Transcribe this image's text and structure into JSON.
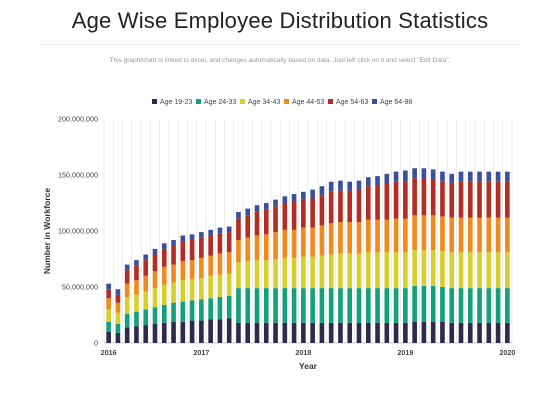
{
  "header": {
    "title": "Age Wise Employee Distribution Statistics",
    "subtitle": "This graph/chart is linked to excel, and changes automatically based on data. Just left click on it and select \"Edit Data\"."
  },
  "colors": {
    "background": "#ffffff",
    "grid": "#dcdcdc"
  },
  "chart_data": {
    "type": "bar",
    "stacked": true,
    "xlabel": "Year",
    "ylabel": "Number in Workforce",
    "ylim": [
      0,
      200000000
    ],
    "yticks": [
      0,
      50000000,
      100000000,
      150000000,
      200000000
    ],
    "ytick_labels": [
      "0",
      "50,000,000",
      "100,000,000",
      "150,000,000",
      "200,000,000"
    ],
    "x_tick_labels": [
      {
        "label": "2016",
        "index": 0
      },
      {
        "label": "2017",
        "index": 10
      },
      {
        "label": "2018",
        "index": 21
      },
      {
        "label": "2019",
        "index": 32
      },
      {
        "label": "2020",
        "index": 43
      }
    ],
    "grid": true,
    "grid_orientation": "vertical",
    "legend_position": "top",
    "series": [
      {
        "name": "Age 19-23",
        "color": "#2f2a4a",
        "values": [
          10000000,
          9000000,
          14000000,
          15000000,
          16000000,
          17000000,
          18000000,
          19000000,
          19000000,
          20000000,
          20000000,
          21000000,
          21000000,
          22000000,
          18000000,
          18000000,
          18000000,
          18000000,
          18000000,
          18000000,
          18000000,
          18000000,
          18000000,
          18000000,
          18000000,
          18000000,
          18000000,
          18000000,
          18000000,
          18000000,
          18000000,
          18000000,
          18000000,
          19000000,
          19000000,
          19000000,
          19000000,
          18000000,
          18000000,
          18000000,
          18000000,
          18000000,
          18000000,
          18000000
        ]
      },
      {
        "name": "Age 24-33",
        "color": "#13a07a",
        "values": [
          9000000,
          8000000,
          12000000,
          13000000,
          14000000,
          15000000,
          16000000,
          17000000,
          18000000,
          18000000,
          19000000,
          19000000,
          20000000,
          20000000,
          31000000,
          31000000,
          31000000,
          31000000,
          31000000,
          31000000,
          31000000,
          31000000,
          31000000,
          31000000,
          31000000,
          31000000,
          31000000,
          31000000,
          31000000,
          31000000,
          31000000,
          31000000,
          31000000,
          32000000,
          32000000,
          32000000,
          31000000,
          31000000,
          31000000,
          31000000,
          31000000,
          31000000,
          31000000,
          31000000
        ]
      },
      {
        "name": "Age 34-43",
        "color": "#d7cf2e",
        "values": [
          11000000,
          10000000,
          15000000,
          15000000,
          16000000,
          17000000,
          18000000,
          18000000,
          19000000,
          19000000,
          19000000,
          20000000,
          20000000,
          20000000,
          23000000,
          24000000,
          25000000,
          25000000,
          26000000,
          27000000,
          27000000,
          28000000,
          28000000,
          29000000,
          30000000,
          31000000,
          31000000,
          31000000,
          32000000,
          32000000,
          32000000,
          32000000,
          32000000,
          32000000,
          32000000,
          32000000,
          32000000,
          32000000,
          32000000,
          32000000,
          32000000,
          32000000,
          32000000,
          32000000
        ]
      },
      {
        "name": "Age 44-53",
        "color": "#ef8a1e",
        "values": [
          10000000,
          9000000,
          12000000,
          13000000,
          14000000,
          15000000,
          16000000,
          16000000,
          17000000,
          17000000,
          18000000,
          18000000,
          19000000,
          19000000,
          20000000,
          21000000,
          22000000,
          23000000,
          24000000,
          25000000,
          25000000,
          26000000,
          26000000,
          27000000,
          28000000,
          28000000,
          28000000,
          28000000,
          29000000,
          29000000,
          29000000,
          30000000,
          30000000,
          31000000,
          31000000,
          31000000,
          31000000,
          31000000,
          31000000,
          31000000,
          31000000,
          31000000,
          31000000,
          31000000
        ]
      },
      {
        "name": "Age 54-63",
        "color": "#b22d24",
        "values": [
          8000000,
          7000000,
          12000000,
          13000000,
          14000000,
          15000000,
          16000000,
          17000000,
          18000000,
          18000000,
          18000000,
          18000000,
          18000000,
          18000000,
          19000000,
          20000000,
          21000000,
          22000000,
          23000000,
          24000000,
          25000000,
          25000000,
          26000000,
          27000000,
          28000000,
          28000000,
          28000000,
          29000000,
          30000000,
          31000000,
          32000000,
          33000000,
          33000000,
          33000000,
          33000000,
          32000000,
          31000000,
          31000000,
          32000000,
          32000000,
          32000000,
          32000000,
          32000000,
          32000000
        ]
      },
      {
        "name": "Age 64-98",
        "color": "#3b4f9b",
        "values": [
          5000000,
          5000000,
          5000000,
          5000000,
          5000000,
          5000000,
          5000000,
          5000000,
          5000000,
          5000000,
          5000000,
          5000000,
          5000000,
          5000000,
          6000000,
          6000000,
          6000000,
          6000000,
          6000000,
          6000000,
          7000000,
          7000000,
          8000000,
          8000000,
          9000000,
          9000000,
          8000000,
          8000000,
          8000000,
          8000000,
          9000000,
          9000000,
          10000000,
          9000000,
          9000000,
          9000000,
          9000000,
          8000000,
          9000000,
          9000000,
          9000000,
          9000000,
          9000000,
          9000000
        ]
      }
    ]
  }
}
